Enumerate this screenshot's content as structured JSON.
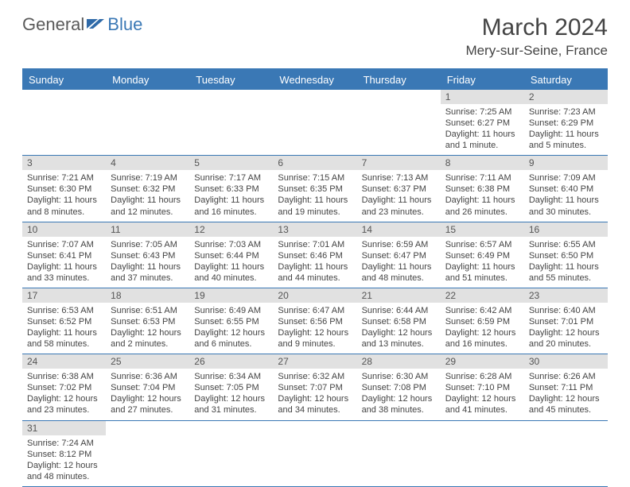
{
  "logo": {
    "text_a": "General",
    "text_b": "Blue"
  },
  "title": "March 2024",
  "location": "Mery-sur-Seine, France",
  "colors": {
    "header_bar": "#3a78b5",
    "daynum_bg": "#e1e1e1",
    "page_bg": "#ffffff",
    "text": "#444444"
  },
  "day_names": [
    "Sunday",
    "Monday",
    "Tuesday",
    "Wednesday",
    "Thursday",
    "Friday",
    "Saturday"
  ],
  "weeks": [
    [
      {
        "n": "",
        "sr": "",
        "ss": "",
        "dl": ""
      },
      {
        "n": "",
        "sr": "",
        "ss": "",
        "dl": ""
      },
      {
        "n": "",
        "sr": "",
        "ss": "",
        "dl": ""
      },
      {
        "n": "",
        "sr": "",
        "ss": "",
        "dl": ""
      },
      {
        "n": "",
        "sr": "",
        "ss": "",
        "dl": ""
      },
      {
        "n": "1",
        "sr": "Sunrise: 7:25 AM",
        "ss": "Sunset: 6:27 PM",
        "dl": "Daylight: 11 hours and 1 minute."
      },
      {
        "n": "2",
        "sr": "Sunrise: 7:23 AM",
        "ss": "Sunset: 6:29 PM",
        "dl": "Daylight: 11 hours and 5 minutes."
      }
    ],
    [
      {
        "n": "3",
        "sr": "Sunrise: 7:21 AM",
        "ss": "Sunset: 6:30 PM",
        "dl": "Daylight: 11 hours and 8 minutes."
      },
      {
        "n": "4",
        "sr": "Sunrise: 7:19 AM",
        "ss": "Sunset: 6:32 PM",
        "dl": "Daylight: 11 hours and 12 minutes."
      },
      {
        "n": "5",
        "sr": "Sunrise: 7:17 AM",
        "ss": "Sunset: 6:33 PM",
        "dl": "Daylight: 11 hours and 16 minutes."
      },
      {
        "n": "6",
        "sr": "Sunrise: 7:15 AM",
        "ss": "Sunset: 6:35 PM",
        "dl": "Daylight: 11 hours and 19 minutes."
      },
      {
        "n": "7",
        "sr": "Sunrise: 7:13 AM",
        "ss": "Sunset: 6:37 PM",
        "dl": "Daylight: 11 hours and 23 minutes."
      },
      {
        "n": "8",
        "sr": "Sunrise: 7:11 AM",
        "ss": "Sunset: 6:38 PM",
        "dl": "Daylight: 11 hours and 26 minutes."
      },
      {
        "n": "9",
        "sr": "Sunrise: 7:09 AM",
        "ss": "Sunset: 6:40 PM",
        "dl": "Daylight: 11 hours and 30 minutes."
      }
    ],
    [
      {
        "n": "10",
        "sr": "Sunrise: 7:07 AM",
        "ss": "Sunset: 6:41 PM",
        "dl": "Daylight: 11 hours and 33 minutes."
      },
      {
        "n": "11",
        "sr": "Sunrise: 7:05 AM",
        "ss": "Sunset: 6:43 PM",
        "dl": "Daylight: 11 hours and 37 minutes."
      },
      {
        "n": "12",
        "sr": "Sunrise: 7:03 AM",
        "ss": "Sunset: 6:44 PM",
        "dl": "Daylight: 11 hours and 40 minutes."
      },
      {
        "n": "13",
        "sr": "Sunrise: 7:01 AM",
        "ss": "Sunset: 6:46 PM",
        "dl": "Daylight: 11 hours and 44 minutes."
      },
      {
        "n": "14",
        "sr": "Sunrise: 6:59 AM",
        "ss": "Sunset: 6:47 PM",
        "dl": "Daylight: 11 hours and 48 minutes."
      },
      {
        "n": "15",
        "sr": "Sunrise: 6:57 AM",
        "ss": "Sunset: 6:49 PM",
        "dl": "Daylight: 11 hours and 51 minutes."
      },
      {
        "n": "16",
        "sr": "Sunrise: 6:55 AM",
        "ss": "Sunset: 6:50 PM",
        "dl": "Daylight: 11 hours and 55 minutes."
      }
    ],
    [
      {
        "n": "17",
        "sr": "Sunrise: 6:53 AM",
        "ss": "Sunset: 6:52 PM",
        "dl": "Daylight: 11 hours and 58 minutes."
      },
      {
        "n": "18",
        "sr": "Sunrise: 6:51 AM",
        "ss": "Sunset: 6:53 PM",
        "dl": "Daylight: 12 hours and 2 minutes."
      },
      {
        "n": "19",
        "sr": "Sunrise: 6:49 AM",
        "ss": "Sunset: 6:55 PM",
        "dl": "Daylight: 12 hours and 6 minutes."
      },
      {
        "n": "20",
        "sr": "Sunrise: 6:47 AM",
        "ss": "Sunset: 6:56 PM",
        "dl": "Daylight: 12 hours and 9 minutes."
      },
      {
        "n": "21",
        "sr": "Sunrise: 6:44 AM",
        "ss": "Sunset: 6:58 PM",
        "dl": "Daylight: 12 hours and 13 minutes."
      },
      {
        "n": "22",
        "sr": "Sunrise: 6:42 AM",
        "ss": "Sunset: 6:59 PM",
        "dl": "Daylight: 12 hours and 16 minutes."
      },
      {
        "n": "23",
        "sr": "Sunrise: 6:40 AM",
        "ss": "Sunset: 7:01 PM",
        "dl": "Daylight: 12 hours and 20 minutes."
      }
    ],
    [
      {
        "n": "24",
        "sr": "Sunrise: 6:38 AM",
        "ss": "Sunset: 7:02 PM",
        "dl": "Daylight: 12 hours and 23 minutes."
      },
      {
        "n": "25",
        "sr": "Sunrise: 6:36 AM",
        "ss": "Sunset: 7:04 PM",
        "dl": "Daylight: 12 hours and 27 minutes."
      },
      {
        "n": "26",
        "sr": "Sunrise: 6:34 AM",
        "ss": "Sunset: 7:05 PM",
        "dl": "Daylight: 12 hours and 31 minutes."
      },
      {
        "n": "27",
        "sr": "Sunrise: 6:32 AM",
        "ss": "Sunset: 7:07 PM",
        "dl": "Daylight: 12 hours and 34 minutes."
      },
      {
        "n": "28",
        "sr": "Sunrise: 6:30 AM",
        "ss": "Sunset: 7:08 PM",
        "dl": "Daylight: 12 hours and 38 minutes."
      },
      {
        "n": "29",
        "sr": "Sunrise: 6:28 AM",
        "ss": "Sunset: 7:10 PM",
        "dl": "Daylight: 12 hours and 41 minutes."
      },
      {
        "n": "30",
        "sr": "Sunrise: 6:26 AM",
        "ss": "Sunset: 7:11 PM",
        "dl": "Daylight: 12 hours and 45 minutes."
      }
    ],
    [
      {
        "n": "31",
        "sr": "Sunrise: 7:24 AM",
        "ss": "Sunset: 8:12 PM",
        "dl": "Daylight: 12 hours and 48 minutes."
      },
      {
        "n": "",
        "sr": "",
        "ss": "",
        "dl": ""
      },
      {
        "n": "",
        "sr": "",
        "ss": "",
        "dl": ""
      },
      {
        "n": "",
        "sr": "",
        "ss": "",
        "dl": ""
      },
      {
        "n": "",
        "sr": "",
        "ss": "",
        "dl": ""
      },
      {
        "n": "",
        "sr": "",
        "ss": "",
        "dl": ""
      },
      {
        "n": "",
        "sr": "",
        "ss": "",
        "dl": ""
      }
    ]
  ]
}
